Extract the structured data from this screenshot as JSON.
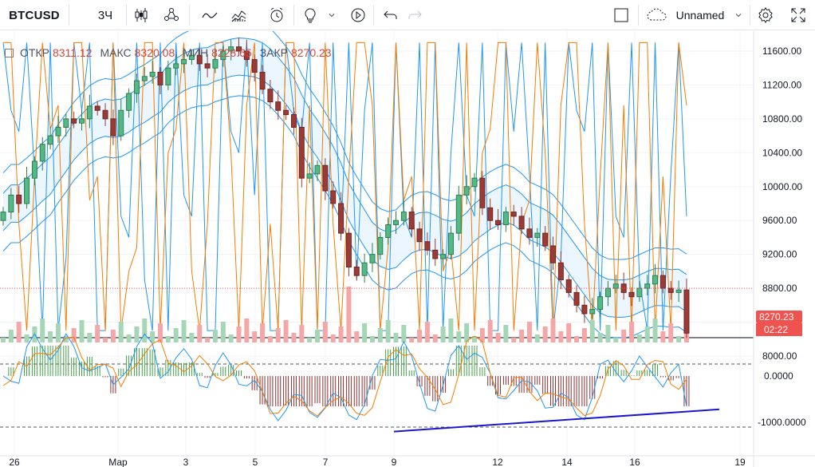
{
  "toolbar": {
    "symbol": "BTCUSD",
    "interval": "3Ч",
    "layout_name": "Unnamed",
    "icons": [
      "candles-icon",
      "compare-icon",
      "indicators-icon",
      "alert-icon",
      "bulb-icon",
      "chevron-down-icon",
      "replay-icon",
      "undo-icon",
      "redo-icon",
      "fullscreen-square-icon",
      "cloud-icon",
      "settings-icon",
      "expand-icon"
    ]
  },
  "legend": {
    "open_label": "ОТКР",
    "open": "8311.12",
    "high_label": "МАКС",
    "high": "8320.08",
    "low_label": "МИН",
    "low": "8228.65",
    "close_label": "ЗАКР",
    "close": "8270.23"
  },
  "price_badge": {
    "price": "8270.23",
    "countdown": "02:22",
    "color": "#ef5350"
  },
  "colors": {
    "up": "#53b987",
    "down": "#9c3a36",
    "band": "#2196f3",
    "orange": "#f57c00",
    "trend": "#1a1acc",
    "grid": "#f0f3fa"
  },
  "chart_data": [
    {
      "type": "candlestick",
      "title": "BTCUSD 3Ч",
      "y_axis": {
        "range": [
          8160,
          11760
        ],
        "ticks": [
          "11600.00",
          "11200.00",
          "10800.00",
          "10400.00",
          "10000.00",
          "9600.00",
          "9200.00",
          "8800.00",
          "8400.00",
          "8000.00"
        ]
      },
      "x_axis": {
        "ticks": [
          "26",
          "Мар",
          "3",
          "5",
          "7",
          "9",
          "12",
          "14",
          "16",
          "19"
        ]
      },
      "close_series": [
        9700,
        9900,
        9800,
        10100,
        10300,
        10500,
        10600,
        10700,
        10800,
        10750,
        10800,
        10950,
        10900,
        10800,
        10600,
        10900,
        11100,
        11250,
        11300,
        11350,
        11200,
        11400,
        11450,
        11500,
        11550,
        11450,
        11400,
        11500,
        11600,
        11650,
        11600,
        11500,
        11350,
        11150,
        11000,
        10900,
        10850,
        10700,
        10100,
        10150,
        10250,
        9950,
        9800,
        9450,
        9050,
        8950,
        9100,
        9200,
        9400,
        9550,
        9600,
        9700,
        9500,
        9350,
        9250,
        9150,
        9200,
        9450,
        9900,
        10000,
        10100,
        9750,
        9600,
        9550,
        9700,
        9650,
        9500,
        9400,
        9450,
        9300,
        9100,
        8900,
        8750,
        8600,
        8500,
        8550,
        8700,
        8800,
        8850,
        8750,
        8700,
        8800,
        8850,
        8950,
        8800,
        8750,
        8780,
        8270.23
      ]
    },
    {
      "type": "bar",
      "title": "",
      "y_axis": {
        "ticks": [
          "0.0000",
          "-1000.0000"
        ]
      },
      "trendline": {
        "from": [
          9,
          -1200
        ],
        "to": [
          18.4,
          -720
        ]
      }
    }
  ]
}
